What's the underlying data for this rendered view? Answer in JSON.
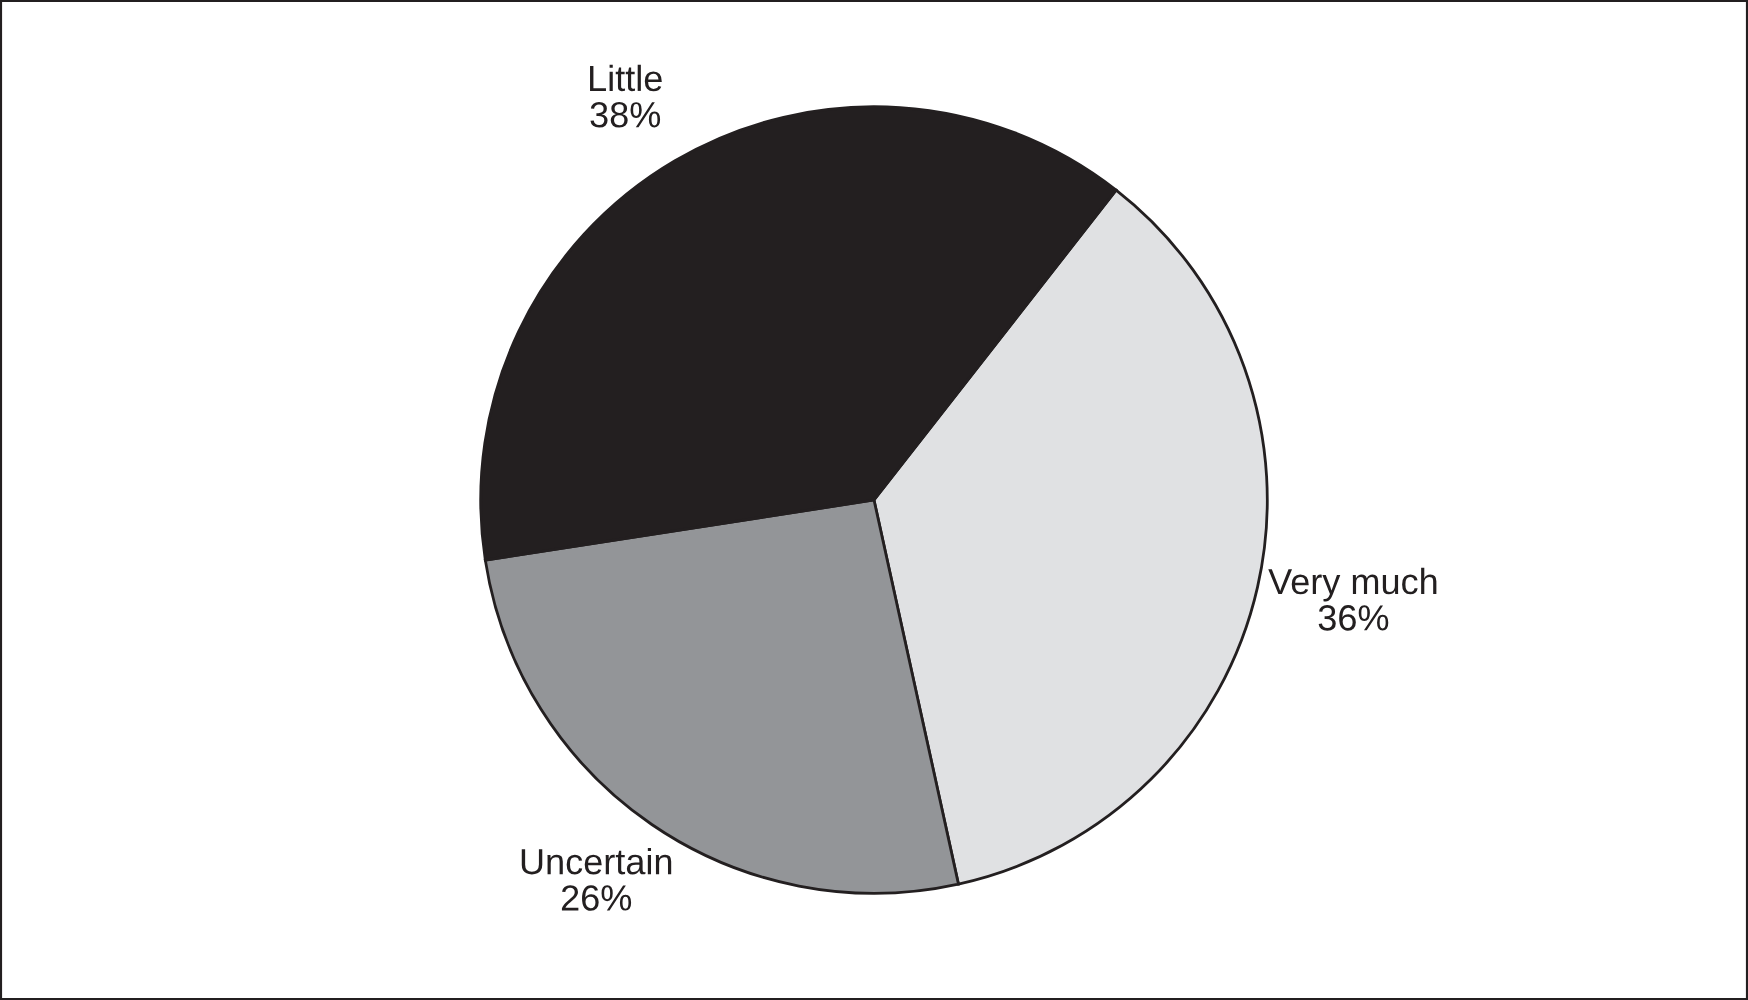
{
  "chart_data": {
    "type": "pie",
    "categories": [
      "Very much",
      "Uncertain",
      "Little"
    ],
    "values": [
      36,
      26,
      38
    ],
    "value_labels": [
      "36%",
      "26%",
      "38%"
    ],
    "colors": [
      "#e0e1e3",
      "#939598",
      "#231f20"
    ]
  }
}
